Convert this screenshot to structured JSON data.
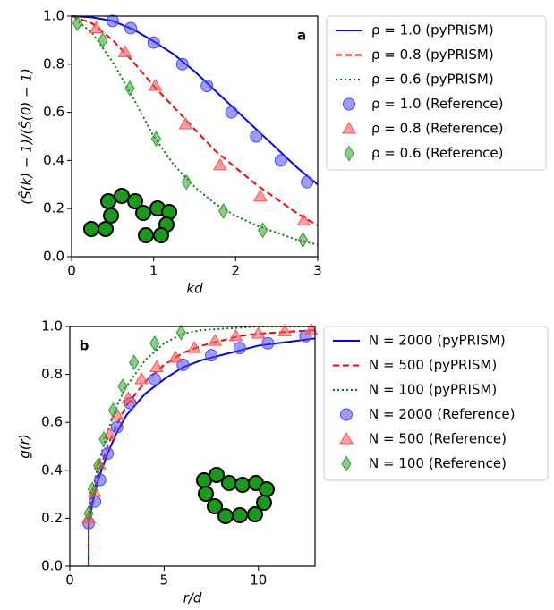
{
  "chart_data": [
    {
      "type": "line",
      "annotation": "a",
      "xlabel": "kd",
      "ylabel": "(Ŝ(k) − 1)/(Ŝ(0) − 1)",
      "xlim": [
        0,
        3
      ],
      "ylim": [
        0,
        1
      ],
      "xticks": [
        0,
        1,
        2,
        3
      ],
      "yticks": [
        {
          "value": 0,
          "label": "0.0"
        },
        0.2,
        0.4,
        0.6,
        0.8,
        {
          "value": 1,
          "label": "1.0"
        }
      ],
      "legend": "outside-right",
      "series": [
        {
          "name": "ρ = 1.0 (pyPRISM)",
          "color": "#0000ff",
          "dash": "solid",
          "x": [
            0,
            0.25,
            0.5,
            0.75,
            1,
            1.25,
            1.5,
            1.75,
            2,
            2.25,
            2.5,
            2.75,
            3
          ],
          "values": [
            1,
            0.995,
            0.98,
            0.945,
            0.895,
            0.84,
            0.77,
            0.69,
            0.61,
            0.53,
            0.45,
            0.37,
            0.3
          ]
        },
        {
          "name": "ρ = 0.8 (pyPRISM)",
          "color": "#ff0000",
          "dash": "dashed",
          "x": [
            0,
            0.25,
            0.5,
            0.75,
            1,
            1.25,
            1.5,
            1.75,
            2,
            2.25,
            2.5,
            2.75,
            3
          ],
          "values": [
            1,
            0.97,
            0.9,
            0.81,
            0.71,
            0.62,
            0.53,
            0.44,
            0.37,
            0.3,
            0.24,
            0.18,
            0.13
          ]
        },
        {
          "name": "ρ = 0.6 (pyPRISM)",
          "color": "#008000",
          "dash": "dotted",
          "x": [
            0,
            0.25,
            0.5,
            0.75,
            1,
            1.25,
            1.5,
            1.75,
            2,
            2.25,
            2.5,
            2.75,
            3
          ],
          "values": [
            1,
            0.93,
            0.81,
            0.66,
            0.5,
            0.38,
            0.29,
            0.22,
            0.17,
            0.13,
            0.1,
            0.07,
            0.05
          ]
        },
        {
          "name": "ρ = 1.0 (Reference)",
          "color": "#4a4aff",
          "marker": "circle",
          "x": [
            0.5,
            0.72,
            1.0,
            1.35,
            1.65,
            1.95,
            2.25,
            2.55,
            2.87
          ],
          "values": [
            0.98,
            0.95,
            0.89,
            0.8,
            0.71,
            0.6,
            0.5,
            0.4,
            0.31
          ]
        },
        {
          "name": "ρ = 0.8 (Reference)",
          "color": "#ff5050",
          "marker": "triangle",
          "x": [
            0.3,
            0.65,
            1.02,
            1.39,
            1.81,
            2.3,
            2.83
          ],
          "values": [
            0.95,
            0.85,
            0.71,
            0.55,
            0.38,
            0.25,
            0.15
          ]
        },
        {
          "name": "ρ = 0.6 (Reference)",
          "color": "#2ca02c",
          "marker": "diamond",
          "x": [
            0.07,
            0.38,
            0.71,
            1.03,
            1.4,
            1.85,
            2.33,
            2.82
          ],
          "values": [
            0.97,
            0.9,
            0.7,
            0.49,
            0.31,
            0.19,
            0.11,
            0.07
          ]
        }
      ]
    },
    {
      "type": "line",
      "annotation": "b",
      "xlabel": "r/d",
      "ylabel": "g(r)",
      "xlim": [
        0,
        13
      ],
      "ylim": [
        0,
        1
      ],
      "xticks": [
        0,
        5,
        10
      ],
      "yticks": [
        {
          "value": 0,
          "label": "0.0"
        },
        0.2,
        0.4,
        0.6,
        0.8,
        {
          "value": 1,
          "label": "1.0"
        }
      ],
      "legend": "outside-right",
      "series": [
        {
          "name": "N = 2000 (pyPRISM)",
          "color": "#0000ff",
          "dash": "solid",
          "x": [
            1,
            1,
            1.25,
            1.5,
            2,
            2.5,
            3,
            4,
            5,
            6,
            7,
            8,
            9,
            10,
            11,
            12,
            13
          ],
          "values": [
            0,
            0.18,
            0.28,
            0.36,
            0.47,
            0.56,
            0.63,
            0.72,
            0.78,
            0.83,
            0.86,
            0.88,
            0.9,
            0.92,
            0.93,
            0.94,
            0.95
          ]
        },
        {
          "name": "N = 500 (pyPRISM)",
          "color": "#ff0000",
          "dash": "dashed",
          "x": [
            1,
            1,
            1.25,
            1.5,
            2,
            2.5,
            3,
            4,
            5,
            6,
            7,
            8,
            9,
            10,
            11,
            12,
            13
          ],
          "values": [
            0,
            0.2,
            0.3,
            0.38,
            0.5,
            0.59,
            0.67,
            0.77,
            0.84,
            0.89,
            0.92,
            0.94,
            0.96,
            0.97,
            0.975,
            0.98,
            0.985
          ]
        },
        {
          "name": "N = 100 (pyPRISM)",
          "color": "#008000",
          "dash": "dotted",
          "x": [
            1,
            1,
            1.25,
            1.5,
            2,
            2.5,
            3,
            4,
            5,
            6,
            7,
            8,
            9,
            10,
            11,
            12,
            13
          ],
          "values": [
            0,
            0.22,
            0.33,
            0.42,
            0.56,
            0.67,
            0.75,
            0.86,
            0.93,
            0.97,
            0.985,
            0.99,
            0.995,
            1,
            1,
            1,
            1
          ]
        },
        {
          "name": "N = 2000 (Reference)",
          "color": "#4a4aff",
          "marker": "circle",
          "x": [
            1.0,
            1.33,
            1.6,
            2.0,
            2.5,
            3.2,
            4.5,
            6,
            7.5,
            9,
            10.5,
            12.5
          ],
          "values": [
            0.18,
            0.27,
            0.36,
            0.47,
            0.58,
            0.68,
            0.78,
            0.84,
            0.88,
            0.91,
            0.93,
            0.96
          ]
        },
        {
          "name": "N = 500 (Reference)",
          "color": "#ff5050",
          "marker": "triangle",
          "x": [
            1.0,
            1.3,
            1.6,
            2.1,
            2.5,
            3.1,
            3.8,
            4.6,
            5.6,
            6.6,
            7.7,
            8.8,
            10,
            11.4,
            12.8
          ],
          "values": [
            0.2,
            0.31,
            0.42,
            0.55,
            0.63,
            0.7,
            0.78,
            0.83,
            0.87,
            0.91,
            0.94,
            0.96,
            0.97,
            0.98,
            0.985
          ]
        },
        {
          "name": "N = 100 (Reference)",
          "color": "#2ca02c",
          "marker": "diamond",
          "x": [
            1.0,
            1.2,
            1.5,
            1.8,
            2.3,
            2.8,
            3.4,
            4.5,
            5.9
          ],
          "values": [
            0.22,
            0.32,
            0.42,
            0.53,
            0.65,
            0.75,
            0.85,
            0.93,
            0.975
          ]
        }
      ]
    }
  ]
}
